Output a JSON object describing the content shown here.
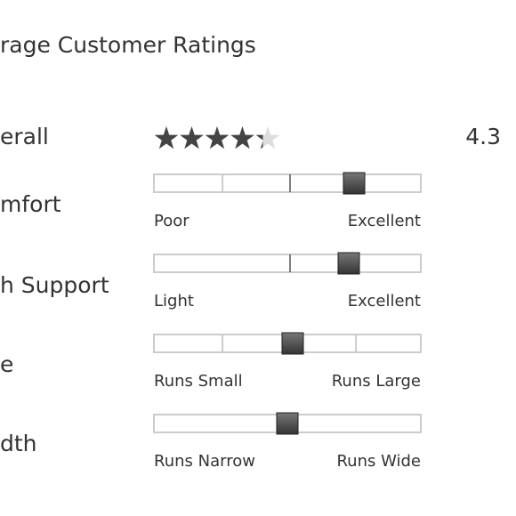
{
  "header": {
    "title": "rage Customer Ratings"
  },
  "overall": {
    "label": "erall",
    "rating": 4.3,
    "max": 5,
    "value_label": "4.3"
  },
  "sliders": [
    {
      "label": "mfort",
      "low": "Poor",
      "high": "Excellent",
      "position": 0.75
    },
    {
      "label": "h Support",
      "low": "Light",
      "high": "Excellent",
      "position": 0.73
    },
    {
      "label": "e",
      "low": "Runs Small",
      "high": "Runs Large",
      "position": 0.52
    },
    {
      "label": "dth",
      "low": "Runs Narrow",
      "high": "Runs Wide",
      "position": 0.5
    }
  ]
}
